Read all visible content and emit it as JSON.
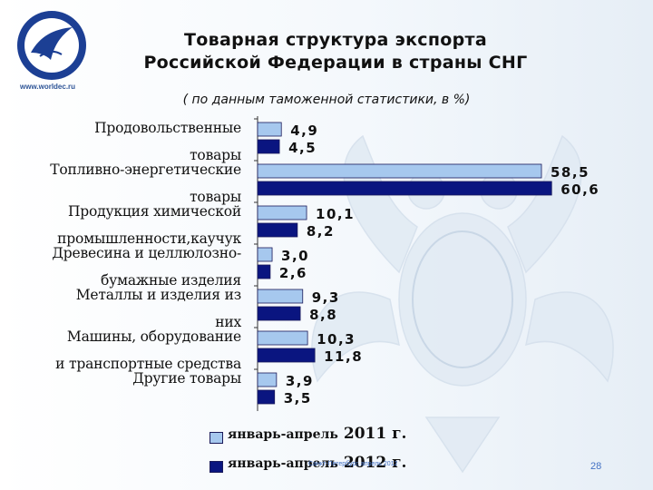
{
  "slide": {
    "title_line1": "Товарная  структура экспорта",
    "title_line2": "Российской Федерации в страны СНГ",
    "subtitle": "( по данным таможенной статистики, в %)",
    "site_url": "www.worldec.ru",
    "footer_text": "Санкт-Петербург, апрель 2012",
    "page_number": "28"
  },
  "chart_data": {
    "type": "bar",
    "orientation": "horizontal",
    "title": "Товарная структура экспорта Российской Федерации в страны СНГ",
    "subtitle": "( по данным таможенной статистики, в %)",
    "categories": [
      {
        "line1": "Продовольственные",
        "line2": "товары"
      },
      {
        "line1": "Топливно-энергетические",
        "line2": "товары"
      },
      {
        "line1": "Продукция химической",
        "line2": "промышленности,каучук"
      },
      {
        "line1": "Древесина и целлюлозно-",
        "line2": "бумажные изделия"
      },
      {
        "line1": "Металлы и изделия из",
        "line2": "них"
      },
      {
        "line1": "Машины, оборудование",
        "line2": "и транспортные средства"
      },
      {
        "line1": "Другие товары",
        "line2": ""
      }
    ],
    "series": [
      {
        "name": "январь-апрель",
        "year": "2011 г.",
        "color": "#a6c8ee",
        "values": [
          4.9,
          58.5,
          10.1,
          3.0,
          9.3,
          10.3,
          3.9
        ],
        "labels": [
          "4,9",
          "58,5",
          "10,1",
          "3,0",
          "9,3",
          "10,3",
          "3,9"
        ]
      },
      {
        "name": "январь-апрель",
        "year": "2012 г.",
        "color": "#0a1580",
        "values": [
          4.5,
          60.6,
          8.2,
          2.6,
          8.8,
          11.8,
          3.5
        ],
        "labels": [
          "4,5",
          "60,6",
          "8,2",
          "2,6",
          "8,8",
          "11,8",
          "3,5"
        ]
      }
    ],
    "xlim": [
      0,
      62
    ],
    "grid": false,
    "legend_position": "bottom"
  }
}
